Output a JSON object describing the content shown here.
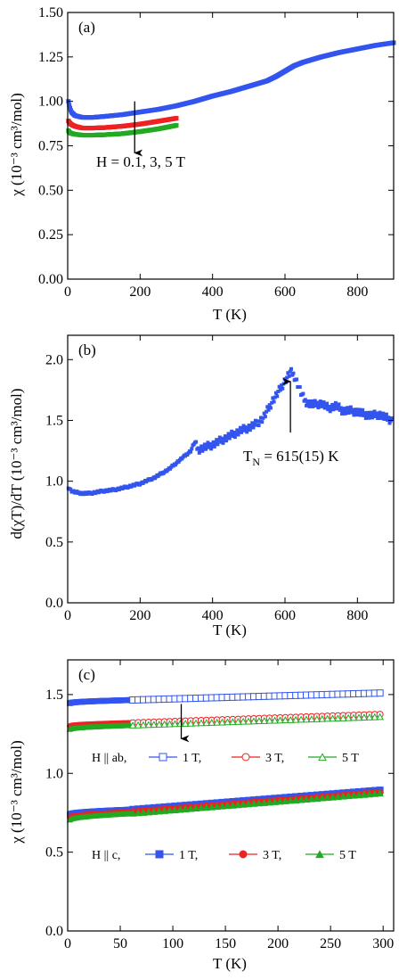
{
  "chart_data": [
    {
      "panel": "(a)",
      "type": "scatter",
      "xlabel": "T (K)",
      "ylabel": "χ (10⁻³ cm³/mol)",
      "xlim": [
        0,
        900
      ],
      "ylim": [
        0,
        1.5
      ],
      "xticks": [
        0,
        200,
        400,
        600,
        800
      ],
      "yticks": [
        0,
        0.25,
        0.5,
        0.75,
        1.0,
        1.25,
        1.5
      ],
      "xtick_labels": [
        "0",
        "200",
        "400",
        "600",
        "800"
      ],
      "ytick_labels": [
        "0.00",
        "0.25",
        "0.50",
        "0.75",
        "1.00",
        "1.25",
        "1.50"
      ],
      "annotation": "H = 0.1, 3, 5 T",
      "arrow": {
        "x": 185,
        "y_from": 1.0,
        "y_to": 0.71
      },
      "series": [
        {
          "color": "#3355ee",
          "x": [
            2,
            5,
            10,
            20,
            40,
            70,
            100,
            150,
            200,
            250,
            300,
            350,
            400,
            450,
            500,
            550,
            575,
            600,
            625,
            650,
            700,
            750,
            800,
            850,
            900
          ],
          "y": [
            1.0,
            0.97,
            0.94,
            0.92,
            0.91,
            0.91,
            0.915,
            0.925,
            0.94,
            0.955,
            0.975,
            1.0,
            1.03,
            1.055,
            1.085,
            1.115,
            1.14,
            1.17,
            1.2,
            1.22,
            1.25,
            1.275,
            1.295,
            1.315,
            1.33
          ]
        },
        {
          "color": "#ee2222",
          "x": [
            2,
            5,
            10,
            20,
            40,
            70,
            100,
            150,
            200,
            250,
            300
          ],
          "y": [
            0.89,
            0.88,
            0.87,
            0.86,
            0.85,
            0.85,
            0.852,
            0.86,
            0.872,
            0.888,
            0.905
          ]
        },
        {
          "color": "#22aa22",
          "x": [
            2,
            5,
            10,
            20,
            40,
            70,
            100,
            150,
            200,
            250,
            300
          ],
          "y": [
            0.835,
            0.825,
            0.82,
            0.815,
            0.81,
            0.81,
            0.812,
            0.818,
            0.83,
            0.845,
            0.865
          ]
        }
      ]
    },
    {
      "panel": "(b)",
      "type": "scatter",
      "xlabel": "T (K)",
      "ylabel": "d(χT)/dT (10⁻³ cm³/mol)",
      "xlim": [
        0,
        900
      ],
      "ylim": [
        0,
        2.2
      ],
      "xticks": [
        0,
        200,
        400,
        600,
        800
      ],
      "yticks": [
        0,
        0.5,
        1.0,
        1.5,
        2.0
      ],
      "xtick_labels": [
        "0",
        "200",
        "400",
        "600",
        "800"
      ],
      "ytick_labels": [
        "0.0",
        "0.5",
        "1.0",
        "1.5",
        "2.0"
      ],
      "annotation_main": "T",
      "annotation_sub": "N",
      "annotation_rest": " = 615(15) K",
      "arrow": {
        "x": 615,
        "y_from": 1.4,
        "y_to": 1.82
      },
      "series": [
        {
          "color": "#3355ee",
          "x": [
            2,
            10,
            20,
            40,
            60,
            80,
            100,
            130,
            160,
            200,
            240,
            280,
            300,
            320,
            340,
            350,
            360,
            380,
            400,
            420,
            440,
            460,
            480,
            500,
            520,
            540,
            555,
            565,
            575,
            585,
            595,
            605,
            615,
            625,
            635,
            645,
            655,
            665,
            680,
            700,
            720,
            740,
            760,
            780,
            800,
            820,
            840,
            860,
            880,
            895
          ],
          "y": [
            0.95,
            0.92,
            0.91,
            0.9,
            0.9,
            0.91,
            0.92,
            0.93,
            0.95,
            0.98,
            1.03,
            1.1,
            1.15,
            1.2,
            1.25,
            1.32,
            1.26,
            1.28,
            1.3,
            1.33,
            1.36,
            1.39,
            1.42,
            1.44,
            1.47,
            1.52,
            1.6,
            1.66,
            1.7,
            1.75,
            1.8,
            1.85,
            1.9,
            1.87,
            1.8,
            1.72,
            1.66,
            1.64,
            1.63,
            1.64,
            1.6,
            1.62,
            1.58,
            1.58,
            1.57,
            1.55,
            1.54,
            1.55,
            1.52,
            1.5
          ]
        }
      ]
    },
    {
      "panel": "(c)",
      "type": "scatter",
      "xlabel": "T (K)",
      "ylabel": "χ (10⁻³ cm³/mol)",
      "xlim": [
        0,
        310
      ],
      "ylim": [
        0,
        1.72
      ],
      "xticks": [
        0,
        50,
        100,
        150,
        200,
        250,
        300
      ],
      "yticks": [
        0,
        0.5,
        1.0,
        1.5
      ],
      "xtick_labels": [
        "0",
        "50",
        "100",
        "150",
        "200",
        "250",
        "300"
      ],
      "ytick_labels": [
        "0.0",
        "0.5",
        "1.0",
        "1.5"
      ],
      "arrow": {
        "x": 108,
        "y_from": 1.44,
        "y_to": 1.22
      },
      "legend_ab": {
        "prefix": "H || ab,",
        "entries": [
          "1 T,",
          "3 T,",
          "5 T"
        ]
      },
      "legend_c": {
        "prefix": "H || c,",
        "entries": [
          "1 T,",
          "3 T,",
          "5 T"
        ]
      },
      "series": [
        {
          "field": "ab",
          "label": "1 T",
          "color": "#3355ee",
          "marker": "square",
          "filled": false,
          "x0": 2,
          "y0": 1.445,
          "x1": 300,
          "y1": 1.51,
          "kink": 1.465
        },
        {
          "field": "ab",
          "label": "3 T",
          "color": "#ee2222",
          "marker": "circle",
          "filled": false,
          "x0": 2,
          "y0": 1.3,
          "x1": 300,
          "y1": 1.375,
          "kink": 1.32
        },
        {
          "field": "ab",
          "label": "5 T",
          "color": "#22aa22",
          "marker": "triangle",
          "filled": false,
          "x0": 2,
          "y0": 1.28,
          "x1": 300,
          "y1": 1.36,
          "kink": 1.305
        },
        {
          "field": "c",
          "label": "1 T",
          "color": "#3355ee",
          "marker": "square",
          "filled": true,
          "x0": 2,
          "y0": 0.74,
          "x1": 300,
          "y1": 0.895,
          "kink": 0.77
        },
        {
          "field": "c",
          "label": "3 T",
          "color": "#ee2222",
          "marker": "circle",
          "filled": true,
          "x0": 2,
          "y0": 0.72,
          "x1": 300,
          "y1": 0.88,
          "kink": 0.755
        },
        {
          "field": "c",
          "label": "5 T",
          "color": "#22aa22",
          "marker": "triangle",
          "filled": true,
          "x0": 2,
          "y0": 0.705,
          "x1": 300,
          "y1": 0.875,
          "kink": 0.745
        }
      ]
    }
  ]
}
